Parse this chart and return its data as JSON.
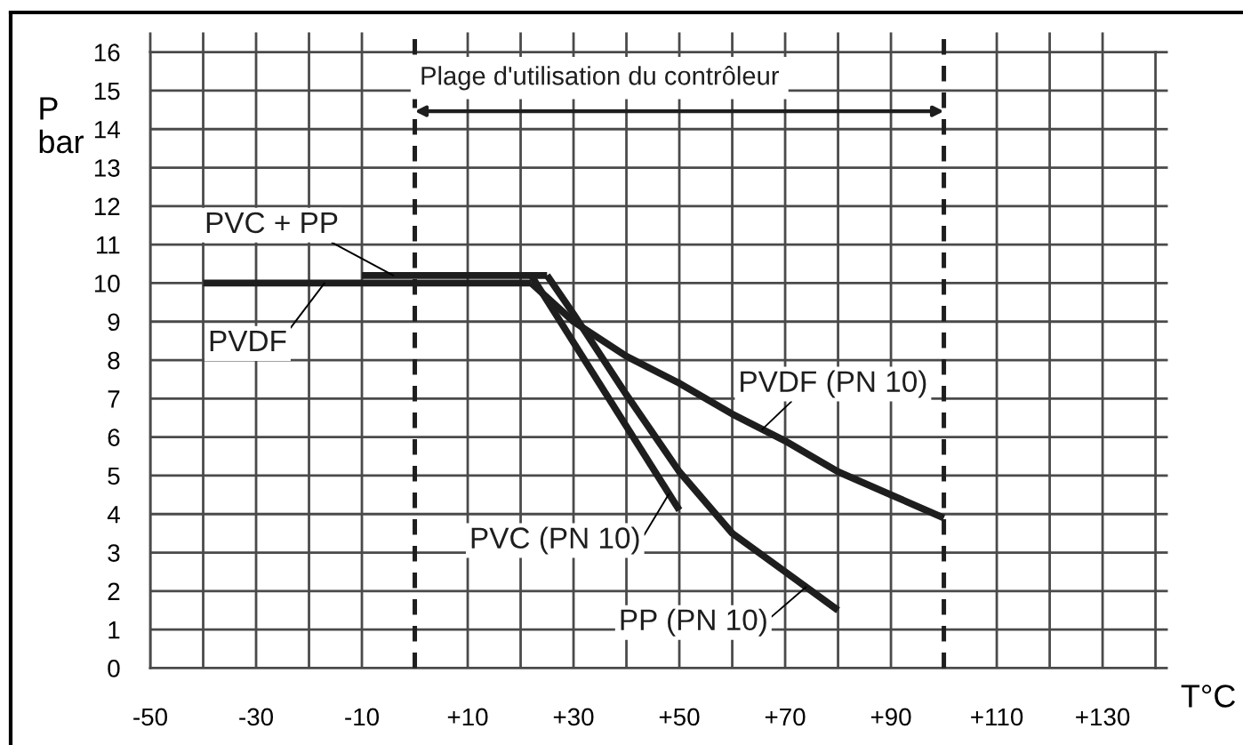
{
  "chart_data": {
    "type": "line",
    "xlabel": "T°C",
    "ylabel": "P\nbar",
    "annotations": [
      "Plage d'utilisation du contrôleur"
    ],
    "xlim": [
      -50,
      140
    ],
    "ylim": [
      0,
      16
    ],
    "xticks": [
      -50,
      {
        "value": -40,
        "label": null
      },
      -30,
      {
        "value": -20,
        "label": null
      },
      -10,
      {
        "value": 10,
        "label": "+10"
      },
      {
        "value": 20,
        "label": null
      },
      {
        "value": 30,
        "label": "+30"
      },
      {
        "value": 40,
        "label": null
      },
      {
        "value": 50,
        "label": "+50"
      },
      {
        "value": 60,
        "label": null
      },
      {
        "value": 70,
        "label": "+70"
      },
      {
        "value": 80,
        "label": null
      },
      {
        "value": 90,
        "label": "+90"
      },
      {
        "value": 110,
        "label": "+110"
      },
      {
        "value": 120,
        "label": null
      },
      {
        "value": 130,
        "label": "+130"
      }
    ],
    "yticks": [
      0,
      1,
      2,
      3,
      4,
      5,
      6,
      7,
      8,
      9,
      10,
      11,
      12,
      13,
      14,
      15,
      16
    ],
    "grid": true,
    "ref_lines": [
      {
        "axis": "x",
        "value": 0,
        "line_style": "dashed",
        "color": "#1e1e1e"
      },
      {
        "axis": "x",
        "value": 100,
        "line_style": "dashed",
        "color": "#1e1e1e"
      }
    ],
    "series": [
      {
        "name": "PVC + PP",
        "color": "#1e1e1e",
        "x": [
          -10,
          25
        ],
        "values": [
          10.2,
          10.2
        ]
      },
      {
        "name": "PVDF",
        "color": "#1e1e1e",
        "x": [
          -40,
          22
        ],
        "values": [
          10,
          10
        ]
      },
      {
        "name": "PVDF (PN 10)",
        "color": "#1e1e1e",
        "x": [
          22,
          30,
          40,
          50,
          60,
          70,
          80,
          90,
          100
        ],
        "values": [
          10,
          9.0,
          8.1,
          7.4,
          6.6,
          5.9,
          5.1,
          4.5,
          3.9
        ]
      },
      {
        "name": "PVC (PN 10)",
        "color": "#1e1e1e",
        "x": [
          22,
          50
        ],
        "values": [
          10.2,
          4.1
        ]
      },
      {
        "name": "PP (PN 10)",
        "color": "#1e1e1e",
        "x": [
          25,
          30,
          40,
          50,
          60,
          70,
          80
        ],
        "values": [
          10.2,
          9.2,
          7.1,
          5.1,
          3.5,
          2.5,
          1.5
        ]
      }
    ]
  }
}
